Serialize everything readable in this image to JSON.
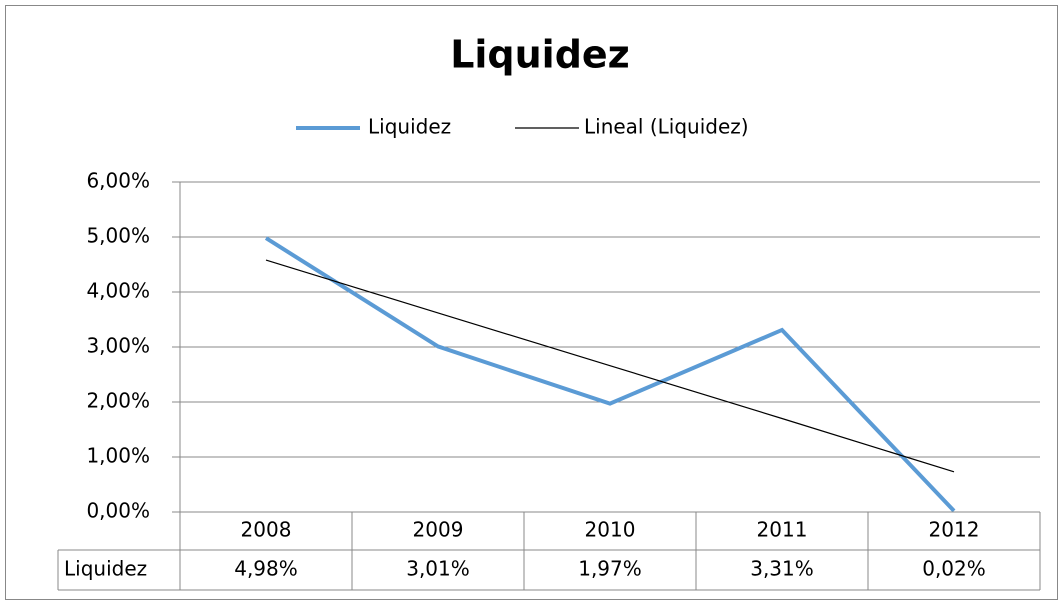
{
  "chart_data": {
    "type": "line",
    "title": "Liquidez",
    "categories": [
      "2008",
      "2009",
      "2010",
      "2011",
      "2012"
    ],
    "series": [
      {
        "name": "Liquidez",
        "color": "#5b9bd5",
        "values": [
          4.98,
          3.01,
          1.97,
          3.31,
          0.02
        ],
        "value_labels": [
          "4,98%",
          "3,01%",
          "1,97%",
          "3,31%",
          "0,02%"
        ]
      },
      {
        "name": "Lineal (Liquidez)",
        "color": "#000000",
        "values": [
          4.58,
          3.62,
          2.66,
          1.7,
          0.73
        ]
      }
    ],
    "ylim": [
      0,
      6
    ],
    "yticks": [
      {
        "value": 0,
        "label": "0,00%"
      },
      {
        "value": 1,
        "label": "1,00%"
      },
      {
        "value": 2,
        "label": "2,00%"
      },
      {
        "value": 3,
        "label": "3,00%"
      },
      {
        "value": 4,
        "label": "4,00%"
      },
      {
        "value": 5,
        "label": "5,00%"
      },
      {
        "value": 6,
        "label": "6,00%"
      }
    ],
    "grid": true,
    "legend": "top",
    "data_table": true
  }
}
